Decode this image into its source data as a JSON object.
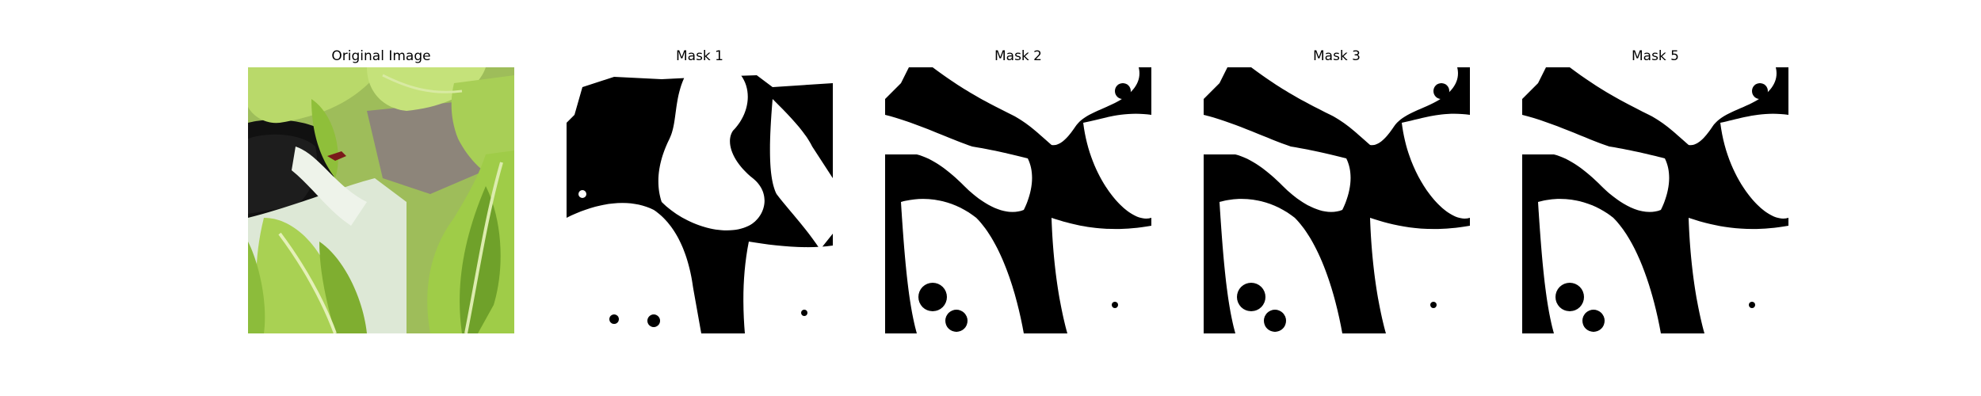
{
  "figure": {
    "panels": [
      {
        "title": "Original Image",
        "kind": "photo"
      },
      {
        "title": "Mask 1",
        "kind": "mask",
        "variant": "a"
      },
      {
        "title": "Mask 2",
        "kind": "mask",
        "variant": "b"
      },
      {
        "title": "Mask 3",
        "kind": "mask",
        "variant": "b"
      },
      {
        "title": "Mask 5",
        "kind": "mask",
        "variant": "b"
      }
    ]
  },
  "colors": {
    "background": "#ffffff",
    "mask_foreground": "#ffffff",
    "mask_background": "#000000",
    "leaf_light": "#b9d96a",
    "leaf_mid": "#8fbf3a",
    "leaf_dark": "#5e8f22",
    "pot": "#dde8d6",
    "pot_rim": "#111111",
    "soil": "#8d857a"
  }
}
